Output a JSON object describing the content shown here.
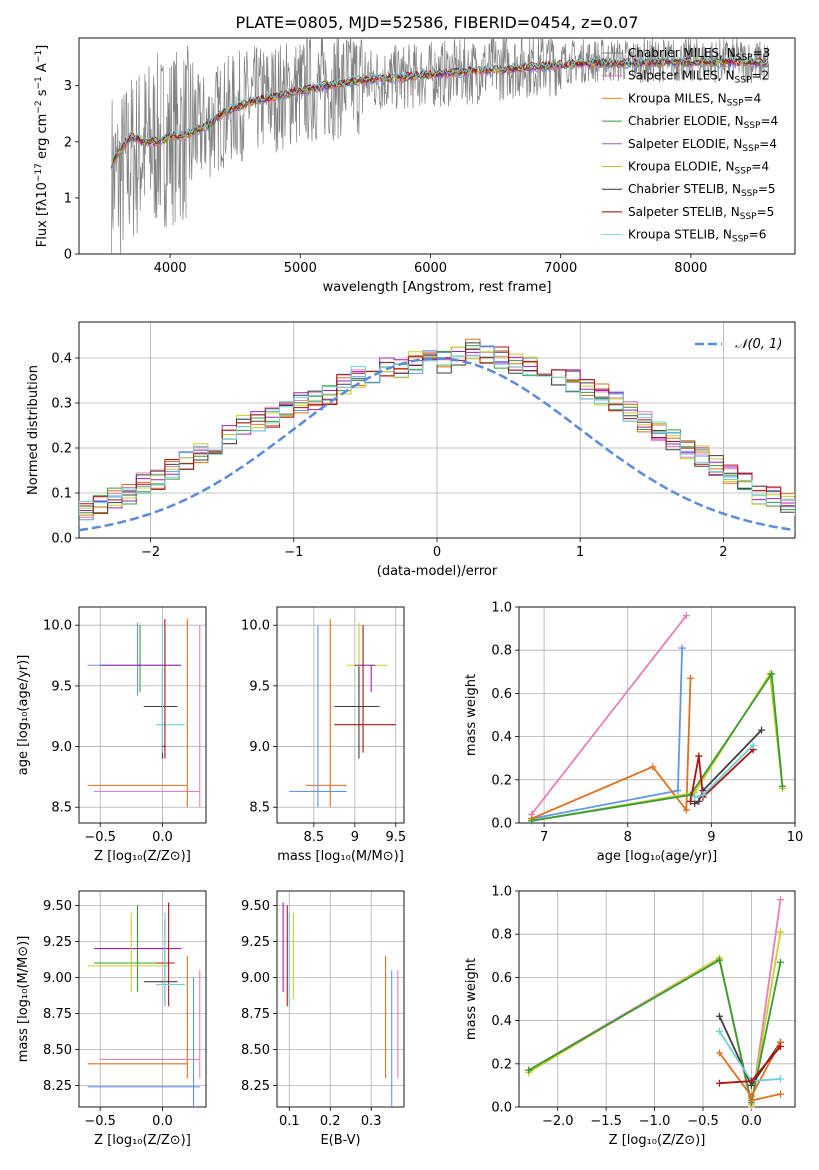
{
  "figure_title": "PLATE=0805, MJD=52586, FIBERID=0454, z=0.07",
  "colors": {
    "grid": "#b0b0b0",
    "data_spectrum": "#808080",
    "models": [
      "#7b7b7b",
      "#e377c2",
      "#ff7f0e",
      "#2ca02c",
      "#9467bd",
      "#bcbd22",
      "#333333",
      "#8b0000",
      "#7fd6e0"
    ],
    "alt_models": [
      "#6495ed",
      "#e87fb8",
      "#e07020",
      "#3a9a3a",
      "#a020c0",
      "#c8d020",
      "#404040",
      "#b01010",
      "#70d0d8"
    ]
  },
  "chart_data": [
    {
      "type": "line",
      "name": "spectrum",
      "title": "",
      "xlabel": "wavelength [Angstrom, rest frame]",
      "ylabel": "Flux [fλ10⁻¹⁷ erg cm⁻² s⁻¹ A⁻¹]",
      "xlim": [
        3300,
        8800
      ],
      "ylim": [
        0,
        3.85
      ],
      "xticks": [
        4000,
        5000,
        6000,
        7000,
        8000
      ],
      "yticks": [
        0,
        1,
        2,
        3
      ],
      "data_x": [
        3550,
        3600,
        3700,
        3800,
        3900,
        4000,
        4100,
        4200,
        4300,
        4400,
        4500,
        4600,
        4800,
        5000,
        5200,
        5500,
        5800,
        6000,
        6300,
        6600,
        6900,
        7200,
        7500,
        7800,
        8100,
        8400,
        8600
      ],
      "data_y": [
        1.4,
        1.3,
        1.7,
        1.9,
        2.0,
        2.1,
        2.1,
        2.2,
        2.3,
        2.5,
        2.6,
        2.7,
        2.8,
        2.9,
        3.0,
        3.1,
        3.15,
        3.2,
        3.25,
        3.35,
        3.4,
        3.45,
        3.45,
        3.45,
        3.45,
        3.45,
        3.4
      ],
      "model_y": [
        1.6,
        1.8,
        2.1,
        2.0,
        2.0,
        2.1,
        2.1,
        2.2,
        2.3,
        2.5,
        2.6,
        2.7,
        2.8,
        2.9,
        3.0,
        3.1,
        3.15,
        3.2,
        3.25,
        3.3,
        3.35,
        3.4,
        3.4,
        3.42,
        3.42,
        3.42,
        3.4
      ],
      "legend": [
        {
          "label": "Chabrier MILES, N",
          "sub": "SSP",
          "eq": "=3"
        },
        {
          "label": "Salpeter MILES, N",
          "sub": "SSP",
          "eq": "=2"
        },
        {
          "label": "Kroupa MILES, N",
          "sub": "SSP",
          "eq": "=4"
        },
        {
          "label": "Chabrier ELODIE, N",
          "sub": "SSP",
          "eq": "=4"
        },
        {
          "label": "Salpeter ELODIE, N",
          "sub": "SSP",
          "eq": "=4"
        },
        {
          "label": "Kroupa ELODIE, N",
          "sub": "SSP",
          "eq": "=4"
        },
        {
          "label": "Chabrier STELIB, N",
          "sub": "SSP",
          "eq": "=5"
        },
        {
          "label": "Salpeter STELIB, N",
          "sub": "SSP",
          "eq": "=5"
        },
        {
          "label": "Kroupa STELIB, N",
          "sub": "SSP",
          "eq": "=6"
        }
      ]
    },
    {
      "type": "line",
      "name": "residual-histogram",
      "xlabel": "(data-model)/error",
      "ylabel": "Normed distribution",
      "xlim": [
        -2.5,
        2.5
      ],
      "ylim": [
        0,
        0.48
      ],
      "xticks": [
        -2,
        -1,
        0,
        1,
        2
      ],
      "yticks": [
        0.0,
        0.1,
        0.2,
        0.3,
        0.4
      ],
      "legend_label": "𝒩(0, 1)",
      "bin_width": 0.1,
      "hist": [
        0.03,
        0.035,
        0.04,
        0.04,
        0.05,
        0.06,
        0.07,
        0.09,
        0.1,
        0.12,
        0.13,
        0.15,
        0.17,
        0.19,
        0.2,
        0.23,
        0.25,
        0.26,
        0.27,
        0.29,
        0.3,
        0.31,
        0.32,
        0.34,
        0.36,
        0.36,
        0.38,
        0.38,
        0.39,
        0.4,
        0.39,
        0.4,
        0.42,
        0.41,
        0.4,
        0.39,
        0.38,
        0.37,
        0.36,
        0.35,
        0.33,
        0.32,
        0.3,
        0.28,
        0.26,
        0.24,
        0.22,
        0.2,
        0.18,
        0.16,
        0.14,
        0.12,
        0.1,
        0.09,
        0.08,
        0.07,
        0.06,
        0.05,
        0.045,
        0.04
      ]
    },
    {
      "type": "scatter",
      "name": "age-vs-Z",
      "xlabel": "Z [log₁₀(Z/Z⊙)]",
      "ylabel": "age  [log₁₀(age/yr)]",
      "xlim": [
        -0.67,
        0.35
      ],
      "ylim": [
        8.37,
        10.15
      ],
      "xticks": [
        -0.5,
        0.0
      ],
      "yticks": [
        8.5,
        9.0,
        9.5,
        10.0
      ],
      "points": [
        {
          "x": -0.2,
          "y": 9.67,
          "xe": [
            -0.6,
            0.15
          ],
          "ye": [
            9.42,
            10.02
          ],
          "c": 0
        },
        {
          "x": -0.18,
          "y": 9.67,
          "xe": [
            -0.2,
            -0.18
          ],
          "ye": [
            9.45,
            10.0
          ],
          "c": 3
        },
        {
          "x": 0.0,
          "y": 9.33,
          "xe": [
            -0.15,
            0.12
          ],
          "ye": [
            8.9,
            9.66
          ],
          "c": 6
        },
        {
          "x": 0.0,
          "y": 9.18,
          "xe": [
            -0.05,
            0.18
          ],
          "ye": [
            8.95,
            10.0
          ],
          "c": 8
        },
        {
          "x": 0.15,
          "y": 9.67,
          "xe": [
            -0.5,
            0.15
          ],
          "ye": [
            9.67,
            9.67
          ],
          "c": 4
        },
        {
          "x": 0.2,
          "y": 8.68,
          "xe": [
            -0.6,
            0.2
          ],
          "ye": [
            8.5,
            10.05
          ],
          "c": 2
        },
        {
          "x": 0.3,
          "y": 8.63,
          "xe": [
            -0.55,
            0.3
          ],
          "ye": [
            8.5,
            10.0
          ],
          "c": 1
        },
        {
          "x": 0.02,
          "y": 9.0,
          "xe": [
            0.0,
            0.02
          ],
          "ye": [
            8.9,
            10.05
          ],
          "c": 7
        }
      ]
    },
    {
      "type": "scatter",
      "name": "age-vs-mass",
      "xlabel": "mass [log₁₀(M/M⊙)]",
      "ylabel": "",
      "xlim": [
        8.05,
        9.6
      ],
      "ylim": [
        8.37,
        10.15
      ],
      "xticks": [
        8.5,
        9.0,
        9.5
      ],
      "yticks": [
        8.5,
        9.0,
        9.5,
        10.0
      ],
      "points": [
        {
          "x": 9.05,
          "y": 9.67,
          "xe": [
            8.9,
            9.4
          ],
          "ye": [
            9.45,
            10.02
          ],
          "c": 5
        },
        {
          "x": 9.05,
          "y": 9.33,
          "xe": [
            8.75,
            9.3
          ],
          "ye": [
            8.9,
            9.66
          ],
          "c": 6
        },
        {
          "x": 9.1,
          "y": 9.18,
          "xe": [
            8.75,
            9.5
          ],
          "ye": [
            8.95,
            10.0
          ],
          "c": 7
        },
        {
          "x": 8.7,
          "y": 8.68,
          "xe": [
            8.4,
            8.9
          ],
          "ye": [
            8.5,
            10.05
          ],
          "c": 2
        },
        {
          "x": 8.55,
          "y": 8.63,
          "xe": [
            8.2,
            8.9
          ],
          "ye": [
            8.5,
            10.0
          ],
          "c": 0
        },
        {
          "x": 9.2,
          "y": 9.67,
          "xe": [
            9.0,
            9.25
          ],
          "ye": [
            9.45,
            9.67
          ],
          "c": 4
        }
      ]
    },
    {
      "type": "line",
      "name": "mass-weight-vs-age",
      "xlabel": "age  [log₁₀(age/yr)]",
      "ylabel": "mass weight",
      "xlim": [
        6.7,
        10.0
      ],
      "ylim": [
        0,
        1.0
      ],
      "xticks": [
        7,
        8,
        9,
        10
      ],
      "yticks": [
        0.0,
        0.2,
        0.4,
        0.6,
        0.8,
        1.0
      ],
      "series": [
        {
          "x": [
            6.85,
            8.7
          ],
          "y": [
            0.04,
            0.96
          ],
          "c": 1
        },
        {
          "x": [
            6.85,
            8.6,
            8.65
          ],
          "y": [
            0.02,
            0.15,
            0.81
          ],
          "c": 0
        },
        {
          "x": [
            6.85,
            8.3,
            8.7,
            8.75
          ],
          "y": [
            0.02,
            0.26,
            0.06,
            0.67
          ],
          "c": 2
        },
        {
          "x": [
            6.85,
            8.8,
            9.7,
            9.85
          ],
          "y": [
            0.01,
            0.14,
            0.69,
            0.16
          ],
          "c": 5
        },
        {
          "x": [
            6.85,
            8.75,
            9.72,
            9.85
          ],
          "y": [
            0.01,
            0.13,
            0.69,
            0.17
          ],
          "c": 3
        },
        {
          "x": [
            8.8,
            8.85,
            8.9,
            9.6
          ],
          "y": [
            0.09,
            0.1,
            0.15,
            0.43
          ],
          "c": 6
        },
        {
          "x": [
            8.75,
            8.85,
            8.9,
            9.5
          ],
          "y": [
            0.1,
            0.31,
            0.12,
            0.34
          ],
          "c": 7
        },
        {
          "x": [
            8.8,
            8.9,
            9.5
          ],
          "y": [
            0.12,
            0.13,
            0.36
          ],
          "c": 8
        }
      ]
    },
    {
      "type": "scatter",
      "name": "mass-vs-Z",
      "xlabel": "Z [log₁₀(Z/Z⊙)]",
      "ylabel": "mass [log₁₀(M/M⊙)]",
      "xlim": [
        -0.67,
        0.35
      ],
      "ylim": [
        8.1,
        9.6
      ],
      "xticks": [
        -0.5,
        0.0
      ],
      "yticks": [
        8.25,
        8.5,
        8.75,
        9.0,
        9.25,
        9.5
      ],
      "points": [
        {
          "x": -0.2,
          "y": 9.1,
          "xe": [
            -0.55,
            0.05
          ],
          "ye": [
            8.9,
            9.5
          ],
          "c": 3
        },
        {
          "x": -0.2,
          "y": 9.2,
          "xe": [
            -0.55,
            0.15
          ],
          "ye": [
            9.2,
            9.2
          ],
          "c": 4
        },
        {
          "x": -0.25,
          "y": 9.08,
          "xe": [
            -0.6,
            0.05
          ],
          "ye": [
            8.9,
            9.45
          ],
          "c": 5
        },
        {
          "x": 0.02,
          "y": 8.97,
          "xe": [
            -0.15,
            0.12
          ],
          "ye": [
            8.8,
            9.4
          ],
          "c": 6
        },
        {
          "x": 0.05,
          "y": 9.1,
          "xe": [
            -0.05,
            0.1
          ],
          "ye": [
            8.8,
            9.52
          ],
          "c": 7
        },
        {
          "x": 0.02,
          "y": 8.95,
          "xe": [
            -0.05,
            0.18
          ],
          "ye": [
            8.8,
            9.45
          ],
          "c": 8
        },
        {
          "x": 0.2,
          "y": 8.4,
          "xe": [
            -0.6,
            0.2
          ],
          "ye": [
            8.3,
            9.15
          ],
          "c": 2
        },
        {
          "x": 0.3,
          "y": 8.43,
          "xe": [
            -0.5,
            0.3
          ],
          "ye": [
            8.3,
            9.05
          ],
          "c": 1
        },
        {
          "x": 0.25,
          "y": 8.24,
          "xe": [
            -0.6,
            0.3
          ],
          "ye": [
            8.1,
            9.0
          ],
          "c": 0
        }
      ]
    },
    {
      "type": "scatter",
      "name": "mass-vs-EBV",
      "xlabel": "E(B-V)",
      "ylabel": "",
      "xlim": [
        0.07,
        0.38
      ],
      "ylim": [
        8.1,
        9.6
      ],
      "xticks": [
        0.1,
        0.2,
        0.3
      ],
      "yticks": [
        8.25,
        8.5,
        8.75,
        9.0,
        9.25,
        9.5
      ],
      "points": [
        {
          "x": 0.085,
          "y": 9.2,
          "ye": [
            8.9,
            9.52
          ],
          "c": 4
        },
        {
          "x": 0.095,
          "y": 9.1,
          "ye": [
            8.8,
            9.5
          ],
          "c": 7
        },
        {
          "x": 0.1,
          "y": 9.0,
          "ye": [
            8.8,
            9.45
          ],
          "c": 8
        },
        {
          "x": 0.11,
          "y": 9.08,
          "ye": [
            8.85,
            9.45
          ],
          "c": 5
        },
        {
          "x": 0.335,
          "y": 8.75,
          "ye": [
            8.3,
            9.15
          ],
          "c": 2
        },
        {
          "x": 0.35,
          "y": 8.6,
          "ye": [
            8.1,
            9.05
          ],
          "c": 0
        },
        {
          "x": 0.365,
          "y": 8.7,
          "ye": [
            8.3,
            9.05
          ],
          "c": 1
        }
      ]
    },
    {
      "type": "line",
      "name": "mass-weight-vs-Z",
      "xlabel": "Z [log₁₀(Z/Z⊙)]",
      "ylabel": "mass weight",
      "xlim": [
        -2.4,
        0.45
      ],
      "ylim": [
        0,
        1.0
      ],
      "xticks": [
        -2.0,
        -1.5,
        -1.0,
        -0.5,
        0.0
      ],
      "yticks": [
        0.0,
        0.2,
        0.4,
        0.6,
        0.8,
        1.0
      ],
      "series": [
        {
          "x": [
            -2.3,
            -0.33,
            0.0,
            0.3
          ],
          "y": [
            0.17,
            0.69,
            0.0,
            0.96
          ],
          "c": 1
        },
        {
          "x": [
            -2.3,
            -0.33,
            0.0,
            0.3
          ],
          "y": [
            0.16,
            0.69,
            0.01,
            0.81
          ],
          "c": 5
        },
        {
          "x": [
            -2.3,
            -0.33,
            0.0,
            0.3
          ],
          "y": [
            0.17,
            0.68,
            0.02,
            0.67
          ],
          "c": 3
        },
        {
          "x": [
            -0.33,
            0.0,
            0.3
          ],
          "y": [
            0.42,
            0.1,
            0.3
          ],
          "c": 6
        },
        {
          "x": [
            -0.33,
            0.0,
            0.3
          ],
          "y": [
            0.25,
            0.05,
            0.3
          ],
          "c": 2
        },
        {
          "x": [
            -0.33,
            0.0,
            0.3
          ],
          "y": [
            0.35,
            0.12,
            0.13
          ],
          "c": 8
        },
        {
          "x": [
            -0.33,
            0.0,
            0.3
          ],
          "y": [
            0.11,
            0.12,
            0.28
          ],
          "c": 7
        },
        {
          "x": [
            0.0,
            0.3
          ],
          "y": [
            0.03,
            0.06
          ],
          "c": 2
        }
      ]
    }
  ],
  "axis_labels": {
    "spec_x": "wavelength [Angstrom, rest frame]",
    "spec_y_pre": "Flux [f",
    "spec_y_mid": "10",
    "spec_y_sup1": "−17",
    "spec_y_post": " erg cm",
    "spec_y_sup2": "−2",
    "spec_y_s": " s",
    "spec_y_sup3": "−1",
    "spec_y_a": " A",
    "spec_y_sup4": "−1",
    "spec_y_end": "]"
  }
}
